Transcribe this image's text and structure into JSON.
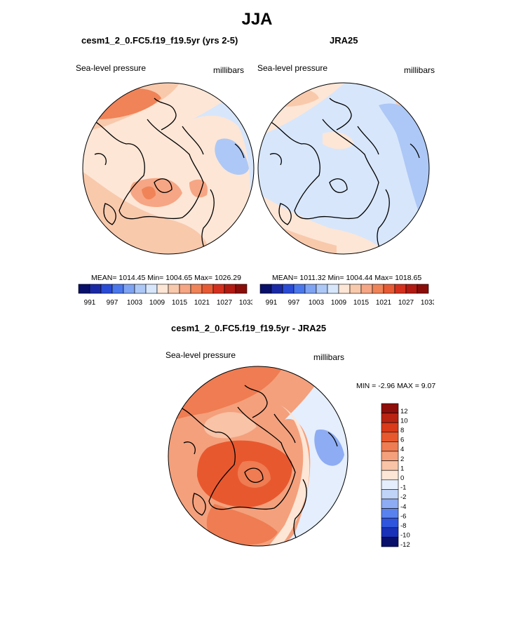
{
  "season_title": "JJA",
  "colors": {
    "land_outline": "#000000",
    "map_outline": "#000000",
    "abs_palette": [
      "#08106b",
      "#1a2aa6",
      "#2a4bd6",
      "#4a77ec",
      "#7ea3f2",
      "#adc8f6",
      "#d7e6fb",
      "#fde6d6",
      "#f9c9ac",
      "#f6a684",
      "#f08358",
      "#e85a34",
      "#d5301e",
      "#b21a12",
      "#8b0d0a"
    ],
    "diff_palette": [
      "#08106b",
      "#1831b8",
      "#2f55de",
      "#5a82ee",
      "#8eacf3",
      "#c0d4f8",
      "#e4eefc",
      "#fde6d6",
      "#f8c3a6",
      "#f4a07c",
      "#ef7c52",
      "#e8582e",
      "#d93a1a",
      "#b82312",
      "#8d0e0a"
    ]
  },
  "panels": {
    "left": {
      "title": "cesm1_2_0.FC5.f19_f19.5yr (yrs 2-5)",
      "variable": "Sea-level pressure",
      "units": "millibars",
      "stats": "MEAN= 1014.45  Min= 1004.65  Max= 1026.29"
    },
    "right": {
      "title": "JRA25",
      "variable": "Sea-level pressure",
      "units": "millibars",
      "stats": "MEAN= 1011.32  Min= 1004.44  Max= 1018.65"
    },
    "diff": {
      "title": "cesm1_2_0.FC5.f19_f19.5yr - JRA25",
      "variable": "Sea-level pressure",
      "units": "millibars",
      "stats": "MIN =  -2.96 MAX =   9.07"
    }
  },
  "colorbar_abs": {
    "ticks": [
      "991",
      "997",
      "1003",
      "1009",
      "1015",
      "1021",
      "1027",
      "1033"
    ]
  },
  "colorbar_diff": {
    "ticks": [
      "12",
      "10",
      "8",
      "6",
      "4",
      "2",
      "1",
      "0",
      "-1",
      "-2",
      "-4",
      "-6",
      "-8",
      "-10",
      "-12"
    ]
  }
}
